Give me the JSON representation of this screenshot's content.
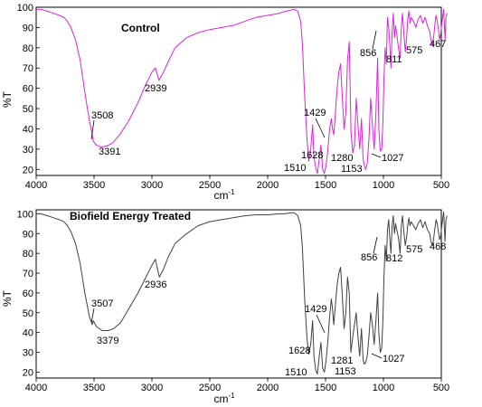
{
  "chart_data": [
    {
      "type": "line",
      "title": "Control",
      "xlabel": "cm",
      "xlabel_sup": "-1",
      "ylabel": "%T",
      "xlim": [
        4000,
        500
      ],
      "ylim": [
        17,
        100
      ],
      "xticks": [
        "4000",
        "3500",
        "3000",
        "2500",
        "2000",
        "1500",
        "1000",
        "500"
      ],
      "yticks": [
        "20",
        "30",
        "40",
        "50",
        "60",
        "70",
        "80",
        "90",
        "100"
      ],
      "color": "#e020e0",
      "series": [
        {
          "x": [
            4000,
            3960,
            3900,
            3850,
            3800,
            3760,
            3730,
            3700,
            3660,
            3620,
            3580,
            3540,
            3515,
            3508,
            3480,
            3440,
            3391,
            3340,
            3280,
            3200,
            3120,
            3060,
            3000,
            2970,
            2939,
            2900,
            2860,
            2800,
            2700,
            2600,
            2500,
            2400,
            2300,
            2200,
            2100,
            2000,
            1900,
            1850,
            1800,
            1770,
            1740,
            1715,
            1700,
            1680,
            1660,
            1645,
            1628,
            1612,
            1600,
            1585,
            1570,
            1555,
            1540,
            1525,
            1510,
            1495,
            1480,
            1465,
            1450,
            1440,
            1429,
            1415,
            1400,
            1385,
            1370,
            1355,
            1340,
            1325,
            1310,
            1295,
            1280,
            1265,
            1250,
            1235,
            1220,
            1205,
            1190,
            1175,
            1165,
            1153,
            1140,
            1125,
            1110,
            1095,
            1080,
            1065,
            1050,
            1040,
            1027,
            1015,
            1005,
            995,
            985,
            975,
            965,
            955,
            945,
            935,
            925,
            915,
            905,
            895,
            885,
            870,
            856,
            845,
            835,
            825,
            811,
            800,
            790,
            780,
            770,
            760,
            740,
            720,
            700,
            680,
            660,
            640,
            620,
            600,
            590,
            575,
            565,
            555,
            545,
            535,
            525,
            515,
            505,
            495,
            480,
            467,
            460,
            450
          ],
          "y": [
            99,
            99,
            98,
            97,
            96,
            95,
            93,
            90,
            84,
            74,
            58,
            44,
            37,
            34,
            32,
            31,
            31.5,
            33,
            37,
            44,
            53,
            61,
            68,
            70,
            64,
            68,
            73,
            80,
            85,
            87.5,
            89,
            90,
            91,
            93,
            95,
            96,
            97,
            98,
            98.5,
            99,
            98,
            93,
            82,
            55,
            35,
            24,
            30,
            42,
            26,
            21,
            18,
            25,
            32,
            20,
            18,
            22,
            30,
            40,
            45,
            40,
            37,
            48,
            60,
            68,
            72,
            55,
            40,
            48,
            74,
            83,
            38,
            28,
            32,
            55,
            42,
            30,
            45,
            25,
            22,
            20,
            23,
            35,
            55,
            42,
            30,
            48,
            75,
            40,
            29,
            30,
            43,
            65,
            80,
            72,
            95,
            90,
            82,
            70,
            88,
            97,
            85,
            91,
            87,
            80,
            75,
            90,
            97,
            88,
            78,
            85,
            94,
            98,
            92,
            95,
            93,
            90,
            94,
            96,
            92,
            95,
            91,
            88,
            84,
            81,
            86,
            92,
            96,
            93,
            89,
            84,
            87,
            92,
            99,
            84,
            95,
            97
          ]
        }
      ],
      "annotations": [
        "3508",
        "3391",
        "2939",
        "1628",
        "1510",
        "1429",
        "1280",
        "1153",
        "1027",
        "856",
        "811",
        "575",
        "467"
      ]
    },
    {
      "type": "line",
      "title": "Biofield Energy Treated",
      "xlabel": "cm",
      "xlabel_sup": "-1",
      "ylabel": "%T",
      "xlim": [
        4000,
        500
      ],
      "ylim": [
        17,
        102
      ],
      "xticks": [
        "4000",
        "3500",
        "3000",
        "2500",
        "2000",
        "1500",
        "1000",
        "500"
      ],
      "yticks": [
        "20",
        "30",
        "40",
        "50",
        "60",
        "70",
        "80",
        "90",
        "100"
      ],
      "color": "#404040",
      "series": [
        {
          "x": [
            4000,
            3960,
            3900,
            3850,
            3800,
            3760,
            3730,
            3700,
            3660,
            3620,
            3580,
            3540,
            3515,
            3507,
            3480,
            3430,
            3379,
            3330,
            3270,
            3200,
            3120,
            3060,
            3000,
            2970,
            2936,
            2900,
            2860,
            2800,
            2700,
            2600,
            2500,
            2400,
            2300,
            2200,
            2100,
            2000,
            1900,
            1850,
            1800,
            1770,
            1740,
            1715,
            1700,
            1680,
            1660,
            1645,
            1628,
            1612,
            1600,
            1585,
            1570,
            1555,
            1540,
            1525,
            1510,
            1495,
            1480,
            1465,
            1450,
            1440,
            1429,
            1415,
            1400,
            1385,
            1370,
            1355,
            1340,
            1325,
            1310,
            1295,
            1281,
            1265,
            1250,
            1235,
            1220,
            1205,
            1190,
            1175,
            1165,
            1153,
            1140,
            1125,
            1110,
            1095,
            1080,
            1065,
            1050,
            1040,
            1027,
            1015,
            1005,
            995,
            985,
            975,
            965,
            955,
            945,
            935,
            925,
            915,
            905,
            895,
            885,
            870,
            856,
            845,
            835,
            825,
            812,
            800,
            790,
            780,
            770,
            760,
            740,
            720,
            700,
            680,
            660,
            640,
            620,
            600,
            590,
            575,
            565,
            555,
            545,
            535,
            525,
            515,
            505,
            495,
            480,
            468,
            460,
            450
          ],
          "y": [
            100,
            100,
            99,
            98,
            97,
            96,
            94,
            91,
            85,
            75,
            60,
            48,
            44,
            46,
            43,
            41,
            41,
            42,
            45,
            52,
            60,
            67,
            74,
            77,
            68,
            72,
            78,
            85,
            90,
            94,
            96,
            97,
            98,
            99,
            99.5,
            99.5,
            100,
            100,
            100.5,
            100.5,
            99,
            94,
            83,
            56,
            37,
            29,
            34,
            46,
            28,
            21,
            19,
            28,
            35,
            22,
            20,
            26,
            36,
            48,
            57,
            52,
            44,
            54,
            64,
            70,
            73,
            58,
            42,
            50,
            68,
            60,
            30,
            38,
            44,
            50,
            38,
            28,
            42,
            26,
            24,
            25,
            28,
            38,
            50,
            44,
            34,
            46,
            60,
            40,
            30,
            32,
            46,
            68,
            84,
            76,
            92,
            97,
            88,
            80,
            94,
            99,
            90,
            95,
            92,
            88,
            80,
            94,
            99,
            92,
            84,
            88,
            94,
            98,
            94,
            96,
            94,
            92,
            95,
            97,
            93,
            96,
            92,
            90,
            86,
            84,
            88,
            93,
            97,
            95,
            91,
            87,
            89,
            94,
            101,
            86,
            97,
            99
          ]
        }
      ],
      "annotations": [
        "3507",
        "3379",
        "2936",
        "1628",
        "1510",
        "1429",
        "1281",
        "1153",
        "1027",
        "856",
        "812",
        "575",
        "468"
      ]
    }
  ]
}
